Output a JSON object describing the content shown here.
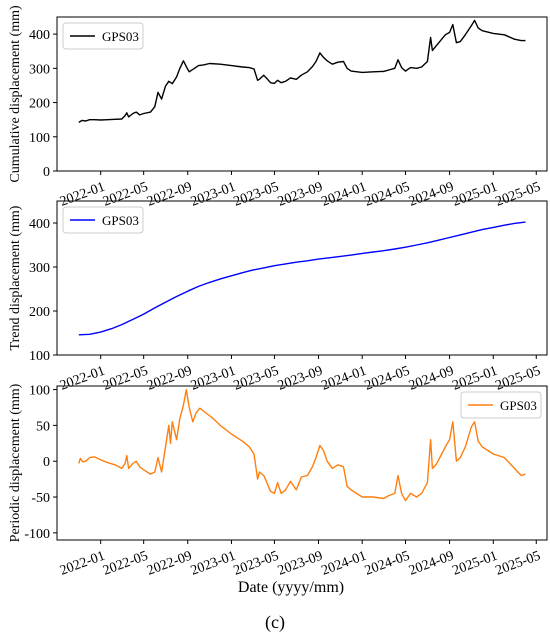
{
  "figure": {
    "caption": "(c)",
    "xlabel": "Date (yyyy/mm)"
  },
  "x_ticks": [
    "2022-01",
    "2022-05",
    "2022-09",
    "2023-01",
    "2023-05",
    "2023-09",
    "2024-01",
    "2024-05",
    "2024-09",
    "2025-01",
    "2025-05"
  ],
  "colors": {
    "black": "#000000",
    "blue": "#0000ff",
    "orange": "#ff7f0e"
  },
  "chart_data": [
    {
      "type": "line",
      "title": "",
      "ylabel": "Cumulative displacement (mm)",
      "xlim": [
        "2021-09-01",
        "2025-05-31"
      ],
      "ylim": [
        0,
        450
      ],
      "y_ticks": [
        0,
        100,
        200,
        300,
        400
      ],
      "grid": false,
      "legend": "top-left",
      "series": [
        {
          "name": "GPS03",
          "color": "#000000",
          "points": [
            [
              "2021-11-01",
              142
            ],
            [
              "2021-11-10",
              148
            ],
            [
              "2021-11-20",
              146
            ],
            [
              "2021-12-01",
              150
            ],
            [
              "2021-12-15",
              150
            ],
            [
              "2022-01-01",
              149
            ],
            [
              "2022-01-20",
              150
            ],
            [
              "2022-02-10",
              151
            ],
            [
              "2022-03-01",
              152
            ],
            [
              "2022-03-10",
              162
            ],
            [
              "2022-03-15",
              170
            ],
            [
              "2022-03-20",
              158
            ],
            [
              "2022-04-01",
              168
            ],
            [
              "2022-04-10",
              172
            ],
            [
              "2022-04-20",
              164
            ],
            [
              "2022-05-01",
              168
            ],
            [
              "2022-05-20",
              172
            ],
            [
              "2022-06-01",
              188
            ],
            [
              "2022-06-10",
              230
            ],
            [
              "2022-06-20",
              210
            ],
            [
              "2022-07-01",
              248
            ],
            [
              "2022-07-10",
              262
            ],
            [
              "2022-07-20",
              255
            ],
            [
              "2022-08-01",
              275
            ],
            [
              "2022-08-10",
              300
            ],
            [
              "2022-08-20",
              322
            ],
            [
              "2022-08-28",
              305
            ],
            [
              "2022-09-05",
              290
            ],
            [
              "2022-09-20",
              300
            ],
            [
              "2022-10-01",
              308
            ],
            [
              "2022-10-15",
              310
            ],
            [
              "2022-11-01",
              314
            ],
            [
              "2022-12-01",
              312
            ],
            [
              "2023-01-01",
              308
            ],
            [
              "2023-02-01",
              304
            ],
            [
              "2023-02-20",
              302
            ],
            [
              "2023-03-05",
              298
            ],
            [
              "2023-03-15",
              265
            ],
            [
              "2023-03-20",
              268
            ],
            [
              "2023-04-01",
              280
            ],
            [
              "2023-04-10",
              270
            ],
            [
              "2023-04-20",
              258
            ],
            [
              "2023-05-01",
              256
            ],
            [
              "2023-05-10",
              265
            ],
            [
              "2023-05-20",
              258
            ],
            [
              "2023-06-01",
              262
            ],
            [
              "2023-06-15",
              272
            ],
            [
              "2023-07-01",
              268
            ],
            [
              "2023-07-15",
              280
            ],
            [
              "2023-08-01",
              290
            ],
            [
              "2023-08-15",
              305
            ],
            [
              "2023-08-25",
              320
            ],
            [
              "2023-09-05",
              345
            ],
            [
              "2023-09-15",
              332
            ],
            [
              "2023-09-25",
              322
            ],
            [
              "2023-10-10",
              312
            ],
            [
              "2023-10-25",
              318
            ],
            [
              "2023-11-10",
              320
            ],
            [
              "2023-11-20",
              300
            ],
            [
              "2023-12-01",
              292
            ],
            [
              "2024-01-01",
              288
            ],
            [
              "2024-02-01",
              290
            ],
            [
              "2024-03-01",
              291
            ],
            [
              "2024-03-15",
              295
            ],
            [
              "2024-04-01",
              300
            ],
            [
              "2024-04-10",
              325
            ],
            [
              "2024-04-20",
              302
            ],
            [
              "2024-05-01",
              292
            ],
            [
              "2024-05-15",
              302
            ],
            [
              "2024-06-01",
              300
            ],
            [
              "2024-06-15",
              304
            ],
            [
              "2024-07-01",
              320
            ],
            [
              "2024-07-10",
              390
            ],
            [
              "2024-07-15",
              352
            ],
            [
              "2024-07-25",
              365
            ],
            [
              "2024-08-10",
              385
            ],
            [
              "2024-08-20",
              398
            ],
            [
              "2024-09-01",
              405
            ],
            [
              "2024-09-10",
              428
            ],
            [
              "2024-09-20",
              375
            ],
            [
              "2024-10-01",
              378
            ],
            [
              "2024-10-15",
              398
            ],
            [
              "2024-11-01",
              425
            ],
            [
              "2024-11-10",
              440
            ],
            [
              "2024-11-20",
              418
            ],
            [
              "2024-12-01",
              410
            ],
            [
              "2025-01-01",
              402
            ],
            [
              "2025-02-01",
              398
            ],
            [
              "2025-03-01",
              385
            ],
            [
              "2025-03-20",
              381
            ],
            [
              "2025-04-01",
              381
            ]
          ]
        }
      ]
    },
    {
      "type": "line",
      "title": "",
      "ylabel": "Trend displacement (mm)",
      "xlim": [
        "2021-09-01",
        "2025-05-31"
      ],
      "ylim": [
        100,
        450
      ],
      "y_ticks": [
        100,
        200,
        300,
        400
      ],
      "grid": false,
      "legend": "top-left",
      "series": [
        {
          "name": "GPS03",
          "color": "#0000ff",
          "points": [
            [
              "2021-11-01",
              146
            ],
            [
              "2021-12-01",
              147
            ],
            [
              "2022-01-01",
              152
            ],
            [
              "2022-02-01",
              160
            ],
            [
              "2022-03-01",
              169
            ],
            [
              "2022-04-01",
              181
            ],
            [
              "2022-05-01",
              193
            ],
            [
              "2022-06-01",
              207
            ],
            [
              "2022-07-01",
              220
            ],
            [
              "2022-08-01",
              233
            ],
            [
              "2022-09-01",
              245
            ],
            [
              "2022-10-01",
              256
            ],
            [
              "2022-11-01",
              265
            ],
            [
              "2022-12-01",
              273
            ],
            [
              "2023-01-01",
              280
            ],
            [
              "2023-02-01",
              287
            ],
            [
              "2023-03-01",
              293
            ],
            [
              "2023-04-01",
              298
            ],
            [
              "2023-05-01",
              303
            ],
            [
              "2023-06-01",
              307
            ],
            [
              "2023-07-01",
              311
            ],
            [
              "2023-08-01",
              314
            ],
            [
              "2023-09-01",
              318
            ],
            [
              "2023-10-01",
              321
            ],
            [
              "2023-11-01",
              324
            ],
            [
              "2023-12-01",
              327
            ],
            [
              "2024-01-01",
              331
            ],
            [
              "2024-02-01",
              334
            ],
            [
              "2024-03-01",
              337
            ],
            [
              "2024-04-01",
              341
            ],
            [
              "2024-05-01",
              345
            ],
            [
              "2024-06-01",
              350
            ],
            [
              "2024-07-01",
              355
            ],
            [
              "2024-08-01",
              361
            ],
            [
              "2024-09-01",
              367
            ],
            [
              "2024-10-01",
              373
            ],
            [
              "2024-11-01",
              379
            ],
            [
              "2024-12-01",
              385
            ],
            [
              "2025-01-01",
              390
            ],
            [
              "2025-02-01",
              395
            ],
            [
              "2025-03-01",
              399
            ],
            [
              "2025-04-01",
              402
            ]
          ]
        }
      ]
    },
    {
      "type": "line",
      "title": "",
      "ylabel": "Periodic displacement (mm)",
      "xlim": [
        "2021-09-01",
        "2025-05-31"
      ],
      "ylim": [
        -110,
        105
      ],
      "y_ticks": [
        -100,
        -50,
        0,
        50,
        100
      ],
      "grid": false,
      "legend": "top-right",
      "series": [
        {
          "name": "GPS03",
          "color": "#ff7f0e",
          "points": [
            [
              "2021-11-01",
              -3
            ],
            [
              "2021-11-05",
              4
            ],
            [
              "2021-11-12",
              -1
            ],
            [
              "2021-11-20",
              0
            ],
            [
              "2021-12-01",
              5
            ],
            [
              "2021-12-15",
              6
            ],
            [
              "2022-01-01",
              2
            ],
            [
              "2022-01-20",
              -2
            ],
            [
              "2022-02-10",
              -5
            ],
            [
              "2022-03-01",
              -10
            ],
            [
              "2022-03-10",
              -3
            ],
            [
              "2022-03-15",
              8
            ],
            [
              "2022-03-20",
              -10
            ],
            [
              "2022-04-01",
              -3
            ],
            [
              "2022-04-10",
              0
            ],
            [
              "2022-04-20",
              -8
            ],
            [
              "2022-05-01",
              -12
            ],
            [
              "2022-05-20",
              -18
            ],
            [
              "2022-06-01",
              -15
            ],
            [
              "2022-06-10",
              5
            ],
            [
              "2022-06-20",
              -15
            ],
            [
              "2022-07-01",
              20
            ],
            [
              "2022-07-10",
              50
            ],
            [
              "2022-07-15",
              25
            ],
            [
              "2022-07-20",
              55
            ],
            [
              "2022-08-01",
              30
            ],
            [
              "2022-08-10",
              60
            ],
            [
              "2022-08-20",
              78
            ],
            [
              "2022-08-28",
              100
            ],
            [
              "2022-09-05",
              75
            ],
            [
              "2022-09-15",
              55
            ],
            [
              "2022-09-25",
              68
            ],
            [
              "2022-10-05",
              74
            ],
            [
              "2022-10-20",
              68
            ],
            [
              "2022-11-10",
              60
            ],
            [
              "2022-12-01",
              50
            ],
            [
              "2023-01-01",
              38
            ],
            [
              "2023-02-01",
              28
            ],
            [
              "2023-02-20",
              20
            ],
            [
              "2023-03-05",
              10
            ],
            [
              "2023-03-15",
              -25
            ],
            [
              "2023-03-20",
              -15
            ],
            [
              "2023-04-01",
              -20
            ],
            [
              "2023-04-10",
              -30
            ],
            [
              "2023-04-20",
              -42
            ],
            [
              "2023-05-01",
              -45
            ],
            [
              "2023-05-10",
              -30
            ],
            [
              "2023-05-20",
              -45
            ],
            [
              "2023-06-01",
              -40
            ],
            [
              "2023-06-15",
              -28
            ],
            [
              "2023-07-01",
              -40
            ],
            [
              "2023-07-15",
              -22
            ],
            [
              "2023-08-01",
              -20
            ],
            [
              "2023-08-15",
              -8
            ],
            [
              "2023-08-25",
              5
            ],
            [
              "2023-09-05",
              22
            ],
            [
              "2023-09-15",
              15
            ],
            [
              "2023-09-25",
              0
            ],
            [
              "2023-10-10",
              -10
            ],
            [
              "2023-10-25",
              -5
            ],
            [
              "2023-11-10",
              -8
            ],
            [
              "2023-11-20",
              -35
            ],
            [
              "2023-12-01",
              -40
            ],
            [
              "2024-01-01",
              -50
            ],
            [
              "2024-02-01",
              -50
            ],
            [
              "2024-03-01",
              -52
            ],
            [
              "2024-03-15",
              -48
            ],
            [
              "2024-04-01",
              -45
            ],
            [
              "2024-04-10",
              -20
            ],
            [
              "2024-04-20",
              -45
            ],
            [
              "2024-05-01",
              -55
            ],
            [
              "2024-05-15",
              -45
            ],
            [
              "2024-06-01",
              -50
            ],
            [
              "2024-06-15",
              -45
            ],
            [
              "2024-07-01",
              -30
            ],
            [
              "2024-07-10",
              30
            ],
            [
              "2024-07-15",
              -10
            ],
            [
              "2024-07-25",
              -5
            ],
            [
              "2024-08-10",
              10
            ],
            [
              "2024-08-20",
              20
            ],
            [
              "2024-09-01",
              30
            ],
            [
              "2024-09-10",
              55
            ],
            [
              "2024-09-20",
              0
            ],
            [
              "2024-10-01",
              5
            ],
            [
              "2024-10-15",
              20
            ],
            [
              "2024-11-01",
              48
            ],
            [
              "2024-11-10",
              55
            ],
            [
              "2024-11-20",
              28
            ],
            [
              "2024-12-01",
              20
            ],
            [
              "2025-01-01",
              10
            ],
            [
              "2025-02-01",
              5
            ],
            [
              "2025-03-01",
              -10
            ],
            [
              "2025-03-20",
              -20
            ],
            [
              "2025-04-01",
              -18
            ]
          ]
        }
      ]
    }
  ]
}
